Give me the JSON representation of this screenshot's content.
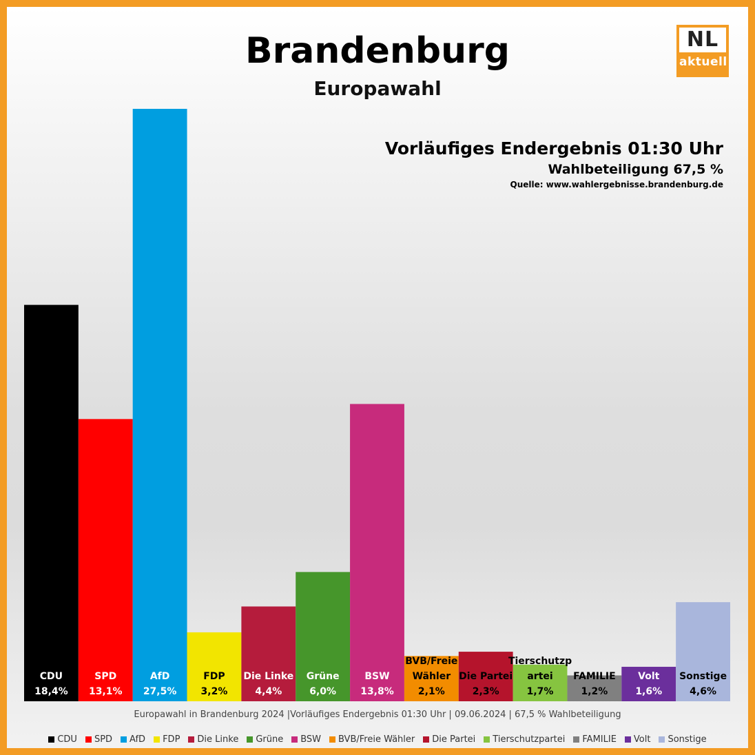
{
  "header": {
    "title": "Brandenburg",
    "subtitle": "Europawahl",
    "status": "Vorläufiges Endergebnis 01:30 Uhr",
    "turnout": "Wahlbeteiligung 67,5 %",
    "source": "Quelle: www.wahlergebnisse.brandenburg.de"
  },
  "logo": {
    "top": "NL",
    "bottom": "aktuell"
  },
  "footnote": "Europawahl in Brandenburg 2024 |Vorläufiges Endergebnis 01:30 Uhr | 09.06.2024 | 67,5 % Wahlbeteiligung",
  "colors": {
    "border": "#f39c24",
    "accent": "#f39c24"
  },
  "chart_data": {
    "type": "bar",
    "ylim": [
      0,
      30
    ],
    "grid": false,
    "legend_position": "bottom",
    "categories": [
      "CDU",
      "SPD",
      "AfD",
      "FDP",
      "Die Linke",
      "Grüne",
      "BSW",
      "BVB/Freie Wähler",
      "Die Partei",
      "Tierschutzpartei",
      "FAMILIE",
      "Volt",
      "Sonstige"
    ],
    "bar_labels": [
      [
        "CDU"
      ],
      [
        "SPD"
      ],
      [
        "AfD"
      ],
      [
        "FDP"
      ],
      [
        "Die Linke"
      ],
      [
        "Grüne"
      ],
      [
        "BSW"
      ],
      [
        "BVB/Freie",
        "Wähler"
      ],
      [
        "Die Partei"
      ],
      [
        "Tierschutzp",
        "artei"
      ],
      [
        "FAMILIE"
      ],
      [
        "Volt"
      ],
      [
        "Sonstige"
      ]
    ],
    "values": [
      18.4,
      13.1,
      27.5,
      3.2,
      4.4,
      6.0,
      13.8,
      2.1,
      2.3,
      1.7,
      1.2,
      1.6,
      4.6
    ],
    "value_labels": [
      "18,4%",
      "13,1%",
      "27,5%",
      "3,2%",
      "4,4%",
      "6,0%",
      "13,8%",
      "2,1%",
      "2,3%",
      "1,7%",
      "1,2%",
      "1,6%",
      "4,6%"
    ],
    "colors": [
      "#000000",
      "#ff0000",
      "#009ee0",
      "#f2e500",
      "#b51c3c",
      "#46962b",
      "#c72b7c",
      "#f28c00",
      "#b5142c",
      "#86c440",
      "#808080",
      "#6b2f9c",
      "#a9b6dc"
    ],
    "label_colors": [
      "#ffffff",
      "#ffffff",
      "#ffffff",
      "#000000",
      "#ffffff",
      "#ffffff",
      "#ffffff",
      "#000000",
      "#000000",
      "#000000",
      "#000000",
      "#ffffff",
      "#000000"
    ]
  }
}
